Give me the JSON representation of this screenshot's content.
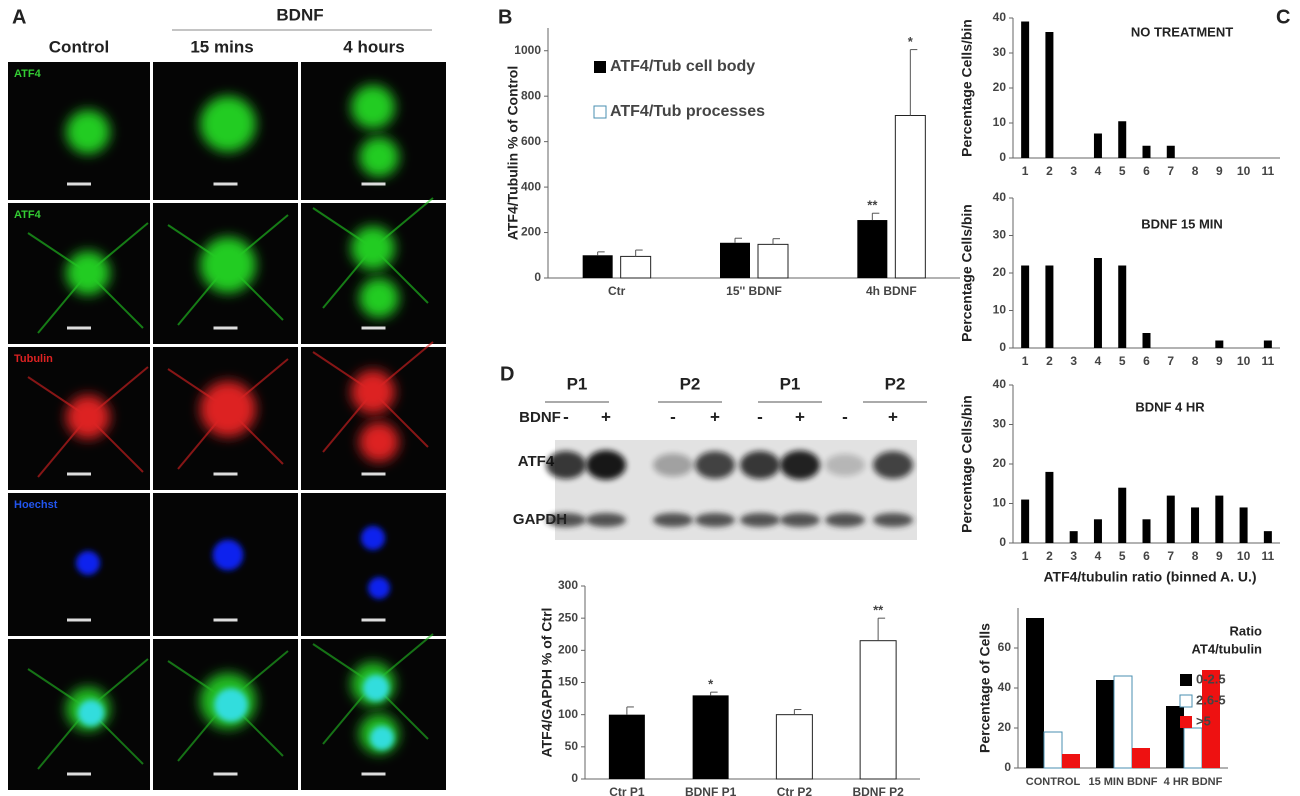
{
  "panel_labels": [
    "A",
    "B",
    "C",
    "D"
  ],
  "panel_a": {
    "group_label": "BDNF",
    "columns": [
      "Control",
      "15 mins",
      "4 hours"
    ],
    "rows": [
      "ATF4",
      "ATF4",
      "Tubulin",
      "Hoechst"
    ]
  },
  "blot": {
    "groups": [
      "P1",
      "P2",
      "P1",
      "P2"
    ],
    "treatment_label": "BDNF",
    "treatments": [
      "-",
      "+",
      "-",
      "+",
      "-",
      "+",
      "-",
      "+"
    ],
    "bands": [
      "ATF4",
      "GAPDH"
    ]
  },
  "chart_data": [
    {
      "type": "bar",
      "ylabel": "ATF4/Tubulin  % of Control",
      "categories": [
        "Ctr",
        "15'' BDNF",
        "4h BDNF"
      ],
      "series": [
        {
          "name": "ATF4/Tub cell body",
          "color": "#000000",
          "values": [
            100,
            155,
            255
          ],
          "errors": [
            15,
            20,
            30
          ],
          "significance": [
            null,
            null,
            "**"
          ]
        },
        {
          "name": "ATF4/Tub processes",
          "color": "#ffffff",
          "values": [
            95,
            148,
            715
          ],
          "errors": [
            28,
            25,
            290
          ],
          "significance": [
            null,
            null,
            "*"
          ]
        }
      ],
      "ylim": [
        0,
        1100
      ],
      "yticks": [
        0,
        200,
        400,
        600,
        800,
        1000
      ]
    },
    {
      "type": "bar",
      "title": "NO TREATMENT",
      "ylabel": "Percentage Cells/bin",
      "categories": [
        "1",
        "2",
        "3",
        "4",
        "5",
        "6",
        "7",
        "8",
        "9",
        "10",
        "11"
      ],
      "values": [
        39,
        36,
        0,
        7,
        10.5,
        3.5,
        3.5,
        0,
        0,
        0,
        0
      ],
      "color": "#000000",
      "ylim": [
        0,
        40
      ],
      "yticks": [
        0,
        10,
        20,
        30,
        40
      ]
    },
    {
      "type": "bar",
      "title": "BDNF 15 MIN",
      "ylabel": "Percentage Cells/bin",
      "categories": [
        "1",
        "2",
        "3",
        "4",
        "5",
        "6",
        "7",
        "8",
        "9",
        "10",
        "11"
      ],
      "values": [
        22,
        22,
        0,
        24,
        22,
        4,
        0,
        0,
        2,
        0,
        2
      ],
      "color": "#000000",
      "ylim": [
        0,
        40
      ],
      "yticks": [
        0,
        10,
        20,
        30,
        40
      ]
    },
    {
      "type": "bar",
      "title": "BDNF 4 HR",
      "ylabel": "Percentage Cells/bin",
      "xlabel": "ATF4/tubulin ratio (binned A. U.)",
      "categories": [
        "1",
        "2",
        "3",
        "4",
        "5",
        "6",
        "7",
        "8",
        "9",
        "10",
        "11"
      ],
      "values": [
        11,
        18,
        3,
        6,
        14,
        6,
        12,
        9,
        12,
        9,
        3
      ],
      "color": "#000000",
      "ylim": [
        0,
        40
      ],
      "yticks": [
        0,
        10,
        20,
        30,
        40
      ]
    },
    {
      "type": "bar",
      "ylabel": "Percentage of Cells",
      "legend_title": [
        "Ratio",
        "AT4/tubulin"
      ],
      "categories": [
        "CONTROL",
        "15 MIN BDNF",
        "4 HR BDNF"
      ],
      "series": [
        {
          "name": "0-2.5",
          "color": "#000000",
          "values": [
            75,
            44,
            31
          ]
        },
        {
          "name": "2.6-5",
          "color": "#ffffff",
          "values": [
            18,
            46,
            20
          ]
        },
        {
          "name": ">5",
          "color": "#ee1111",
          "values": [
            7,
            10,
            49
          ]
        }
      ],
      "ylim": [
        0,
        80
      ],
      "yticks": [
        0,
        20,
        40,
        60
      ]
    },
    {
      "type": "bar",
      "ylabel": "ATF4/GAPDH % of Ctrl",
      "categories": [
        "Ctr P1",
        "BDNF  P1",
        "Ctr P2",
        "BDNF  P2"
      ],
      "values": [
        100,
        130,
        100,
        215
      ],
      "errors": [
        12,
        5,
        8,
        35
      ],
      "significance": [
        null,
        "*",
        null,
        "**"
      ],
      "colors": [
        "#000000",
        "#000000",
        "#ffffff",
        "#ffffff"
      ],
      "ylim": [
        0,
        300
      ],
      "yticks": [
        0,
        50,
        100,
        150,
        200,
        250,
        300
      ]
    }
  ]
}
